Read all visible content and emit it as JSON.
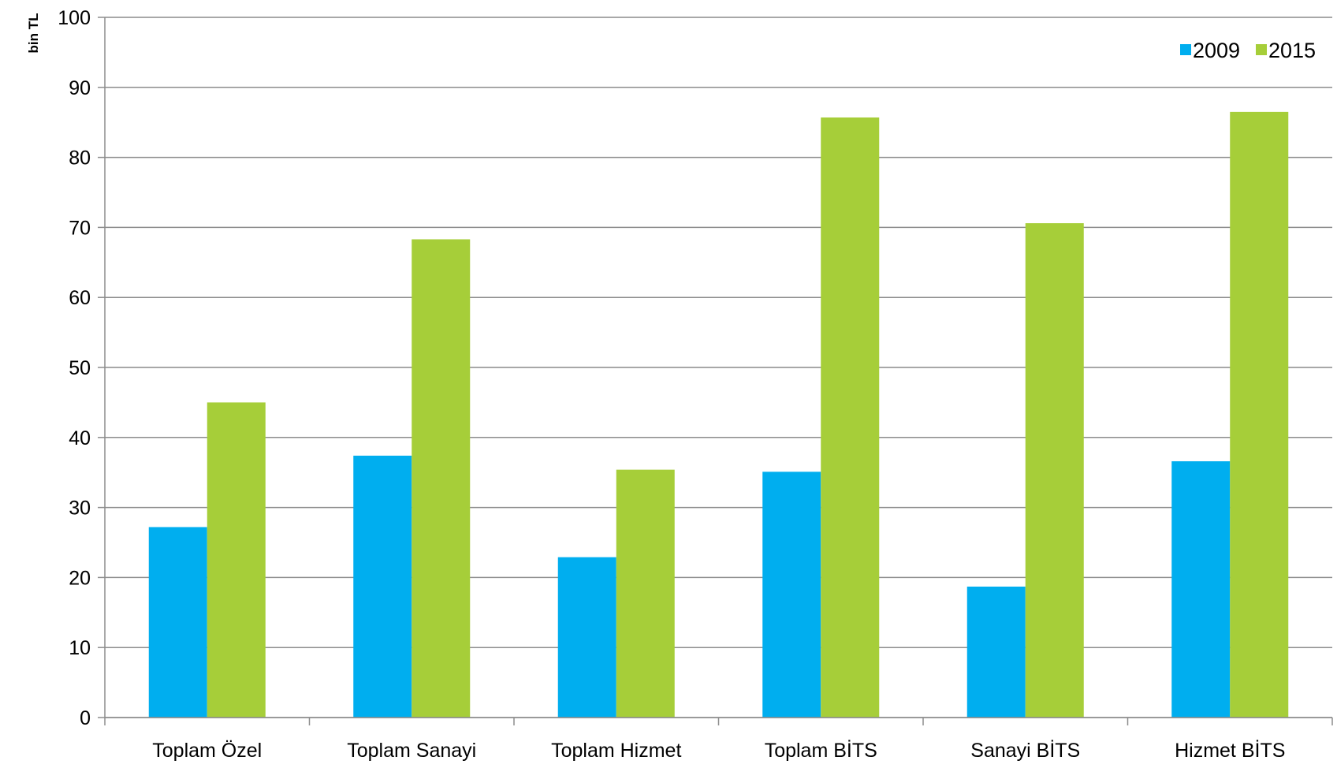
{
  "chart_data": {
    "type": "bar",
    "title": "",
    "xlabel": "",
    "ylabel": "bin TL",
    "ylim": [
      0,
      100
    ],
    "yticks": [
      0,
      10,
      20,
      30,
      40,
      50,
      60,
      70,
      80,
      90,
      100
    ],
    "grid": true,
    "legend_position": "top-right",
    "categories": [
      "Toplam Özel",
      "Toplam Sanayi",
      "Toplam Hizmet",
      "Toplam BİTS",
      "Sanayi BİTS",
      "Hizmet BİTS"
    ],
    "series": [
      {
        "name": "2009",
        "color": "#00aeef",
        "values": [
          27.2,
          37.4,
          22.9,
          35.1,
          18.7,
          36.6
        ]
      },
      {
        "name": "2015",
        "color": "#a6ce39",
        "values": [
          45.0,
          68.3,
          35.4,
          85.7,
          70.6,
          86.5
        ]
      }
    ]
  }
}
